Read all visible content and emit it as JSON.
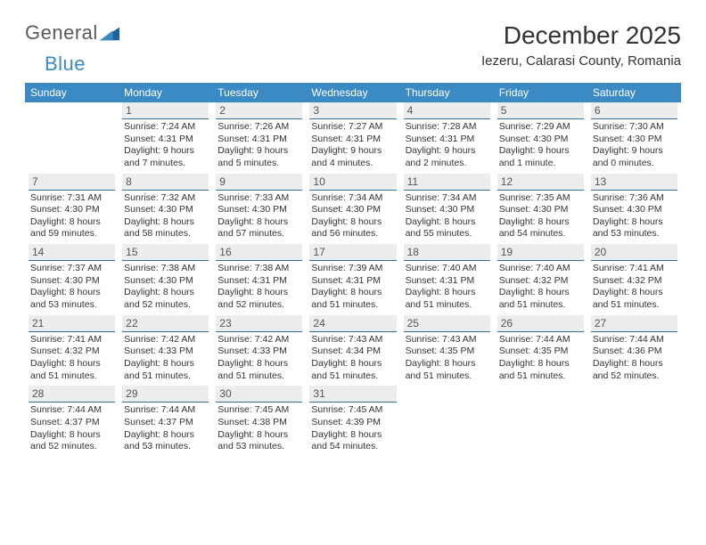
{
  "brand": {
    "part1": "General",
    "part2": "Blue"
  },
  "title": "December 2025",
  "location": "Iezeru, Calarasi County, Romania",
  "colors": {
    "header_bg": "#3b8ac4",
    "header_text": "#ffffff",
    "daynum_bg": "#eceded",
    "daynum_border": "#3b6f95",
    "text": "#333333",
    "logo_gray": "#5a5a5a",
    "logo_blue": "#3b8ac4",
    "page_bg": "#ffffff"
  },
  "day_headers": [
    "Sunday",
    "Monday",
    "Tuesday",
    "Wednesday",
    "Thursday",
    "Friday",
    "Saturday"
  ],
  "weeks": [
    [
      null,
      {
        "n": "1",
        "sr": "7:24 AM",
        "ss": "4:31 PM",
        "dl": "9 hours and 7 minutes."
      },
      {
        "n": "2",
        "sr": "7:26 AM",
        "ss": "4:31 PM",
        "dl": "9 hours and 5 minutes."
      },
      {
        "n": "3",
        "sr": "7:27 AM",
        "ss": "4:31 PM",
        "dl": "9 hours and 4 minutes."
      },
      {
        "n": "4",
        "sr": "7:28 AM",
        "ss": "4:31 PM",
        "dl": "9 hours and 2 minutes."
      },
      {
        "n": "5",
        "sr": "7:29 AM",
        "ss": "4:30 PM",
        "dl": "9 hours and 1 minute."
      },
      {
        "n": "6",
        "sr": "7:30 AM",
        "ss": "4:30 PM",
        "dl": "9 hours and 0 minutes."
      }
    ],
    [
      {
        "n": "7",
        "sr": "7:31 AM",
        "ss": "4:30 PM",
        "dl": "8 hours and 59 minutes."
      },
      {
        "n": "8",
        "sr": "7:32 AM",
        "ss": "4:30 PM",
        "dl": "8 hours and 58 minutes."
      },
      {
        "n": "9",
        "sr": "7:33 AM",
        "ss": "4:30 PM",
        "dl": "8 hours and 57 minutes."
      },
      {
        "n": "10",
        "sr": "7:34 AM",
        "ss": "4:30 PM",
        "dl": "8 hours and 56 minutes."
      },
      {
        "n": "11",
        "sr": "7:34 AM",
        "ss": "4:30 PM",
        "dl": "8 hours and 55 minutes."
      },
      {
        "n": "12",
        "sr": "7:35 AM",
        "ss": "4:30 PM",
        "dl": "8 hours and 54 minutes."
      },
      {
        "n": "13",
        "sr": "7:36 AM",
        "ss": "4:30 PM",
        "dl": "8 hours and 53 minutes."
      }
    ],
    [
      {
        "n": "14",
        "sr": "7:37 AM",
        "ss": "4:30 PM",
        "dl": "8 hours and 53 minutes."
      },
      {
        "n": "15",
        "sr": "7:38 AM",
        "ss": "4:30 PM",
        "dl": "8 hours and 52 minutes."
      },
      {
        "n": "16",
        "sr": "7:38 AM",
        "ss": "4:31 PM",
        "dl": "8 hours and 52 minutes."
      },
      {
        "n": "17",
        "sr": "7:39 AM",
        "ss": "4:31 PM",
        "dl": "8 hours and 51 minutes."
      },
      {
        "n": "18",
        "sr": "7:40 AM",
        "ss": "4:31 PM",
        "dl": "8 hours and 51 minutes."
      },
      {
        "n": "19",
        "sr": "7:40 AM",
        "ss": "4:32 PM",
        "dl": "8 hours and 51 minutes."
      },
      {
        "n": "20",
        "sr": "7:41 AM",
        "ss": "4:32 PM",
        "dl": "8 hours and 51 minutes."
      }
    ],
    [
      {
        "n": "21",
        "sr": "7:41 AM",
        "ss": "4:32 PM",
        "dl": "8 hours and 51 minutes."
      },
      {
        "n": "22",
        "sr": "7:42 AM",
        "ss": "4:33 PM",
        "dl": "8 hours and 51 minutes."
      },
      {
        "n": "23",
        "sr": "7:42 AM",
        "ss": "4:33 PM",
        "dl": "8 hours and 51 minutes."
      },
      {
        "n": "24",
        "sr": "7:43 AM",
        "ss": "4:34 PM",
        "dl": "8 hours and 51 minutes."
      },
      {
        "n": "25",
        "sr": "7:43 AM",
        "ss": "4:35 PM",
        "dl": "8 hours and 51 minutes."
      },
      {
        "n": "26",
        "sr": "7:44 AM",
        "ss": "4:35 PM",
        "dl": "8 hours and 51 minutes."
      },
      {
        "n": "27",
        "sr": "7:44 AM",
        "ss": "4:36 PM",
        "dl": "8 hours and 52 minutes."
      }
    ],
    [
      {
        "n": "28",
        "sr": "7:44 AM",
        "ss": "4:37 PM",
        "dl": "8 hours and 52 minutes."
      },
      {
        "n": "29",
        "sr": "7:44 AM",
        "ss": "4:37 PM",
        "dl": "8 hours and 53 minutes."
      },
      {
        "n": "30",
        "sr": "7:45 AM",
        "ss": "4:38 PM",
        "dl": "8 hours and 53 minutes."
      },
      {
        "n": "31",
        "sr": "7:45 AM",
        "ss": "4:39 PM",
        "dl": "8 hours and 54 minutes."
      },
      null,
      null,
      null
    ]
  ],
  "labels": {
    "sunrise": "Sunrise:",
    "sunset": "Sunset:",
    "daylight": "Daylight:"
  }
}
